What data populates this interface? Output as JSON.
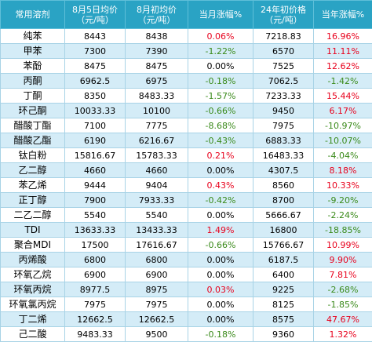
{
  "header": {
    "col_name": "常用溶剂",
    "col_aug5_l1": "8月5日均价",
    "col_aug5_l2": "（元/吨）",
    "col_aug1_l1": "8月初均价",
    "col_aug1_l2": "（元/吨）",
    "col_month_chg": "当月涨幅%",
    "col_start24_l1": "24年初价格",
    "col_start24_l2": "（元/吨）",
    "col_year_chg": "当年涨幅%"
  },
  "colors": {
    "header_bg": "#2aa3c4",
    "row_alt": "#d4ecf7",
    "positive": "#e8001c",
    "negative": "#3a8a1a"
  },
  "rows": [
    {
      "name": "纯苯",
      "aug5": "8443",
      "aug1": "8438",
      "month": "0.06%",
      "start24": "7218.83",
      "year": "16.96%"
    },
    {
      "name": "甲苯",
      "aug5": "7300",
      "aug1": "7390",
      "month": "-1.22%",
      "start24": "6570",
      "year": "11.11%"
    },
    {
      "name": "苯酚",
      "aug5": "8475",
      "aug1": "8475",
      "month": "0.00%",
      "start24": "7525",
      "year": "12.62%"
    },
    {
      "name": "丙酮",
      "aug5": "6962.5",
      "aug1": "6975",
      "month": "-0.18%",
      "start24": "7062.5",
      "year": "-1.42%"
    },
    {
      "name": "丁酮",
      "aug5": "8350",
      "aug1": "8483.33",
      "month": "-1.57%",
      "start24": "7233.33",
      "year": "15.44%"
    },
    {
      "name": "环己酮",
      "aug5": "10033.33",
      "aug1": "10100",
      "month": "-0.66%",
      "start24": "9450",
      "year": "6.17%"
    },
    {
      "name": "醋酸丁酯",
      "aug5": "7100",
      "aug1": "7775",
      "month": "-8.68%",
      "start24": "7975",
      "year": "-10.97%"
    },
    {
      "name": "醋酸乙酯",
      "aug5": "6190",
      "aug1": "6216.67",
      "month": "-0.43%",
      "start24": "6883.33",
      "year": "-10.07%"
    },
    {
      "name": "钛白粉",
      "aug5": "15816.67",
      "aug1": "15783.33",
      "month": "0.21%",
      "start24": "16483.33",
      "year": "-4.04%"
    },
    {
      "name": "乙二醇",
      "aug5": "4660",
      "aug1": "4660",
      "month": "0.00%",
      "start24": "4307.5",
      "year": "8.18%"
    },
    {
      "name": "苯乙烯",
      "aug5": "9444",
      "aug1": "9404",
      "month": "0.43%",
      "start24": "8560",
      "year": "10.33%"
    },
    {
      "name": "正丁醇",
      "aug5": "7900",
      "aug1": "7933.33",
      "month": "-0.42%",
      "start24": "8700",
      "year": "-9.20%"
    },
    {
      "name": "二乙二醇",
      "aug5": "5540",
      "aug1": "5540",
      "month": "0.00%",
      "start24": "5666.67",
      "year": "-2.24%"
    },
    {
      "name": "TDI",
      "aug5": "13633.33",
      "aug1": "13433.33",
      "month": "1.49%",
      "start24": "16800",
      "year": "-18.85%"
    },
    {
      "name": "聚合MDI",
      "aug5": "17500",
      "aug1": "17616.67",
      "month": "-0.66%",
      "start24": "15766.67",
      "year": "10.99%"
    },
    {
      "name": "丙烯酸",
      "aug5": "6800",
      "aug1": "6800",
      "month": "0.00%",
      "start24": "6187.5",
      "year": "9.90%"
    },
    {
      "name": "环氧乙烷",
      "aug5": "6900",
      "aug1": "6900",
      "month": "0.00%",
      "start24": "6400",
      "year": "7.81%"
    },
    {
      "name": "环氧丙烷",
      "aug5": "8977.5",
      "aug1": "8975",
      "month": "0.03%",
      "start24": "9225",
      "year": "-2.68%"
    },
    {
      "name": "环氧氯丙烷",
      "aug5": "7975",
      "aug1": "7975",
      "month": "0.00%",
      "start24": "8125",
      "year": "-1.85%"
    },
    {
      "name": "丁二烯",
      "aug5": "12662.5",
      "aug1": "12662.5",
      "month": "0.00%",
      "start24": "8575",
      "year": "47.67%"
    },
    {
      "name": "己二酸",
      "aug5": "9483.33",
      "aug1": "9500",
      "month": "-0.18%",
      "start24": "9360",
      "year": "1.32%"
    }
  ]
}
